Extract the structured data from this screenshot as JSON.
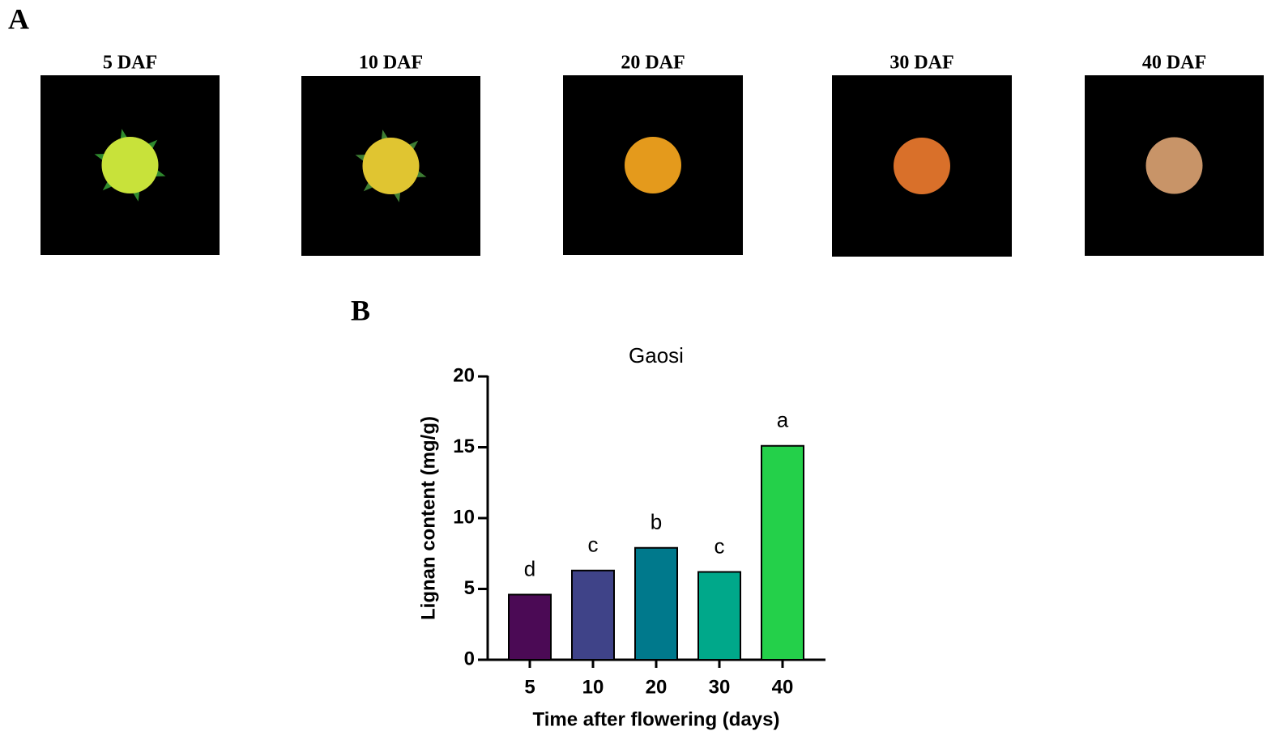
{
  "panel_labels": [
    "A",
    "B"
  ],
  "images": [
    {
      "label": "5 DAF"
    },
    {
      "label": "10 DAF"
    },
    {
      "label": "20 DAF"
    },
    {
      "label": "30 DAF"
    },
    {
      "label": "40 DAF"
    }
  ],
  "chart_data": {
    "type": "bar",
    "title": "Gaosi",
    "x_label": "Time after flowering (days)",
    "y_label": "Lignan content (mg/g)",
    "categories": [
      "5",
      "10",
      "20",
      "30",
      "40"
    ],
    "values": [
      4.6,
      6.3,
      7.9,
      6.2,
      15.1
    ],
    "colors": [
      "#4b0a55",
      "#3f4388",
      "#00798c",
      "#00a88a",
      "#24d04a"
    ],
    "significance_letters": [
      "d",
      "c",
      "b",
      "c",
      "a"
    ],
    "ylim": [
      0,
      20
    ],
    "yticks": [
      0,
      5,
      10,
      15,
      20
    ],
    "grid": false
  }
}
